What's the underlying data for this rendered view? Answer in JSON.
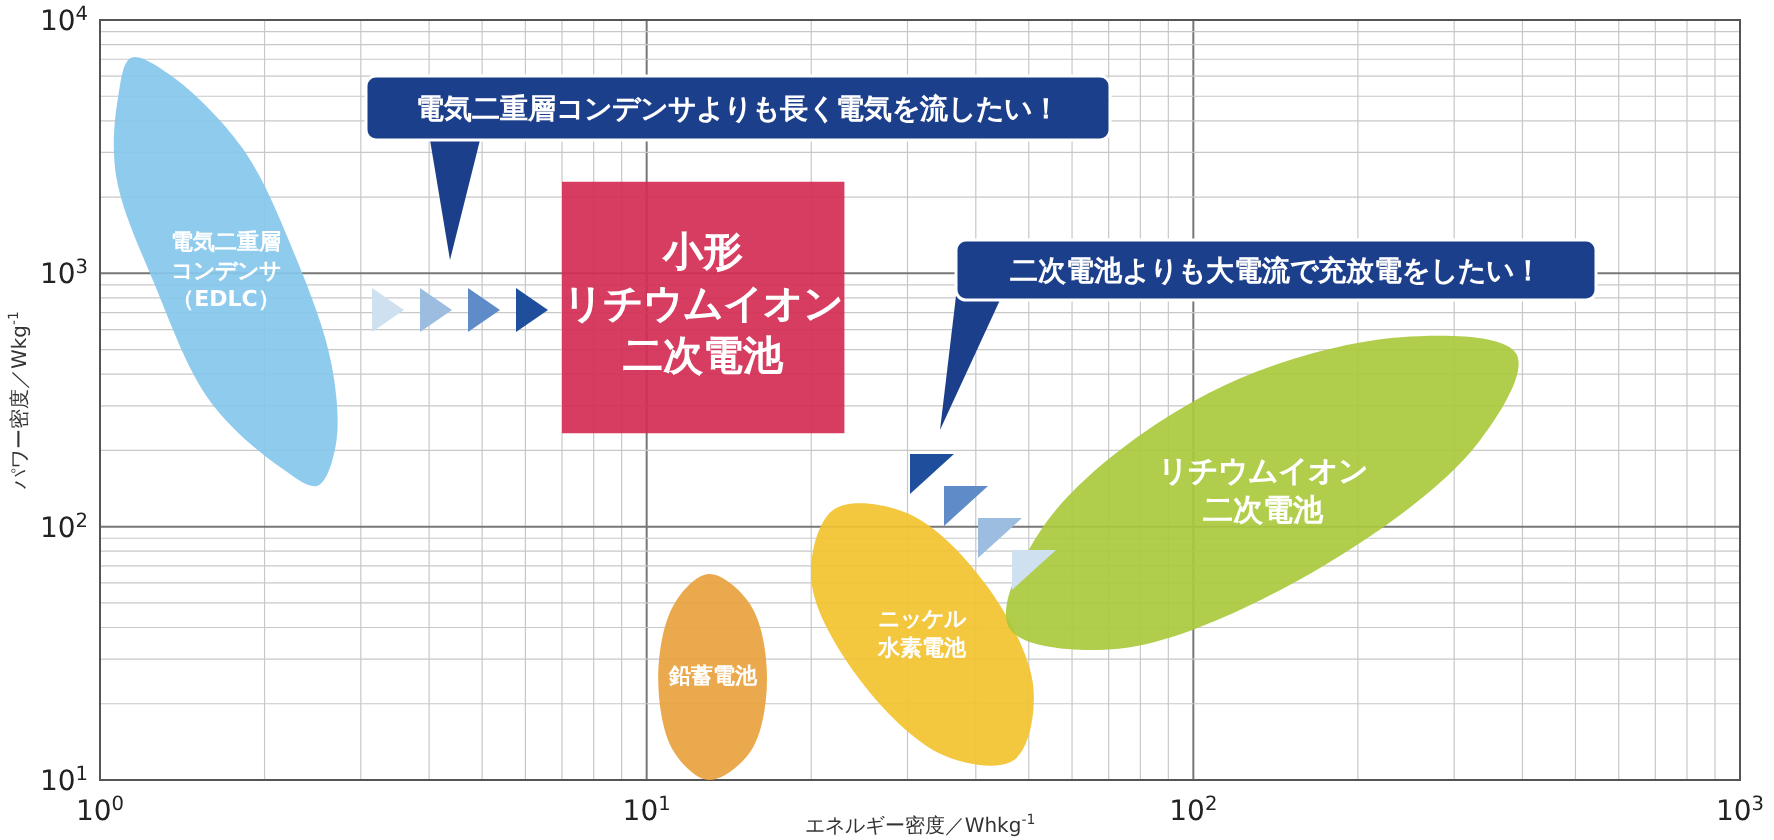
{
  "chart_data": {
    "type": "area",
    "log": "xy",
    "xlim": [
      1,
      1000
    ],
    "ylim": [
      10,
      10000
    ],
    "xticks": [
      {
        "value": 1,
        "label": "10$^{0}$"
      },
      {
        "value": 2,
        "label": null
      },
      {
        "value": 3,
        "label": null
      },
      {
        "value": 4,
        "label": null
      },
      {
        "value": 5,
        "label": null
      },
      {
        "value": 6,
        "label": null
      },
      {
        "value": 7,
        "label": null
      },
      {
        "value": 8,
        "label": null
      },
      {
        "value": 9,
        "label": null
      },
      {
        "value": 10,
        "label": "10$^{1}$"
      },
      {
        "value": 20,
        "label": null
      },
      {
        "value": 30,
        "label": null
      },
      {
        "value": 40,
        "label": null
      },
      {
        "value": 50,
        "label": null
      },
      {
        "value": 60,
        "label": null
      },
      {
        "value": 70,
        "label": null
      },
      {
        "value": 80,
        "label": null
      },
      {
        "value": 90,
        "label": null
      },
      {
        "value": 100,
        "label": "10$^{2}$"
      },
      {
        "value": 200,
        "label": null
      },
      {
        "value": 300,
        "label": null
      },
      {
        "value": 400,
        "label": null
      },
      {
        "value": 500,
        "label": null
      },
      {
        "value": 600,
        "label": null
      },
      {
        "value": 700,
        "label": null
      },
      {
        "value": 800,
        "label": null
      },
      {
        "value": 900,
        "label": null
      },
      {
        "value": 1000,
        "label": "10$^{3}$"
      }
    ],
    "yticks": [
      {
        "value": 10,
        "label": "10$^{1}$"
      },
      {
        "value": 20,
        "label": null
      },
      {
        "value": 30,
        "label": null
      },
      {
        "value": 40,
        "label": null
      },
      {
        "value": 50,
        "label": null
      },
      {
        "value": 60,
        "label": null
      },
      {
        "value": 70,
        "label": null
      },
      {
        "value": 80,
        "label": null
      },
      {
        "value": 90,
        "label": null
      },
      {
        "value": 100,
        "label": "10$^{2}$"
      },
      {
        "value": 200,
        "label": null
      },
      {
        "value": 300,
        "label": null
      },
      {
        "value": 400,
        "label": null
      },
      {
        "value": 500,
        "label": null
      },
      {
        "value": 600,
        "label": null
      },
      {
        "value": 700,
        "label": null
      },
      {
        "value": 800,
        "label": null
      },
      {
        "value": 900,
        "label": null
      },
      {
        "value": 1000,
        "label": "10$^{3}$"
      },
      {
        "value": 2000,
        "label": null
      },
      {
        "value": 3000,
        "label": null
      },
      {
        "value": 4000,
        "label": null
      },
      {
        "value": 5000,
        "label": null
      },
      {
        "value": 6000,
        "label": null
      },
      {
        "value": 7000,
        "label": null
      },
      {
        "value": 8000,
        "label": null
      },
      {
        "value": 9000,
        "label": null
      },
      {
        "value": 10000,
        "label": "10$^{4}$"
      }
    ],
    "xlabel": "エネルギー密度／Whkg$^{-1}$",
    "ylabel": "パワー密度／Wkg$^{-1}$",
    "grid": true,
    "legend": false,
    "series": [
      {
        "name": "電気二重層コンデンサ（EDLC）",
        "color": "#86c7ec",
        "x": [
          2.5,
          2.7,
          2.65,
          2.28,
          1.82,
          1.34,
          1.14,
          1.08,
          1.07,
          1.26,
          1.59,
          2.15
        ],
        "values": [
          145,
          210,
          440,
          1160,
          3130,
          6100,
          7100,
          5000,
          2430,
          900,
          313,
          170
        ]
      },
      {
        "name": "小形リチウムイオン二次電池",
        "color": "#d42c54",
        "x": [
          7,
          23,
          23,
          7
        ],
        "values": [
          2300,
          2300,
          234,
          234
        ]
      },
      {
        "name": "鉛蓄電池",
        "color": "#e8a23e",
        "x": [
          13,
          15.5,
          16.6,
          15.5,
          13,
          11.2,
          10.5,
          11.2
        ],
        "values": [
          65,
          49,
          25,
          13,
          10,
          13,
          25,
          49
        ]
      },
      {
        "name": "ニッケル水素電池",
        "color": "#f2c22e",
        "x": [
          47,
          51,
          42,
          30,
          22,
          20,
          24.5,
          35
        ],
        "values": [
          12,
          23,
          58,
          113,
          117,
          62,
          25,
          12.5
        ]
      },
      {
        "name": "リチウムイオン二次電池",
        "color": "#a9c93c",
        "x": [
          390,
          330,
          165,
          73,
          46,
          54,
          107,
          240
        ],
        "values": [
          480,
          211,
          66,
          33,
          40,
          105,
          338,
          560
        ]
      }
    ],
    "annotations": [
      "電気二重層コンデンサよりも長く電気を流したい！",
      "二次電池よりも大電流で充放電をしたい！"
    ]
  }
}
